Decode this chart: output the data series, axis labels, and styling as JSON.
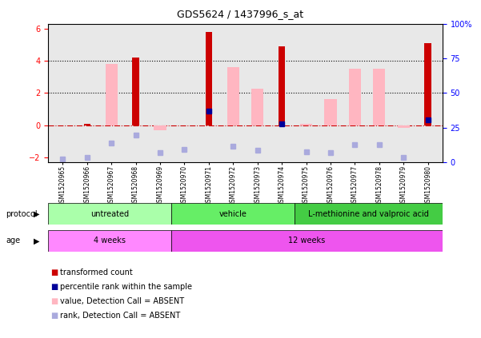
{
  "title": "GDS5624 / 1437996_s_at",
  "samples": [
    "GSM1520965",
    "GSM1520966",
    "GSM1520967",
    "GSM1520968",
    "GSM1520969",
    "GSM1520970",
    "GSM1520971",
    "GSM1520972",
    "GSM1520973",
    "GSM1520974",
    "GSM1520975",
    "GSM1520976",
    "GSM1520977",
    "GSM1520978",
    "GSM1520979",
    "GSM1520980"
  ],
  "transformed_count": [
    null,
    0.1,
    null,
    4.2,
    null,
    null,
    5.8,
    null,
    null,
    4.9,
    null,
    null,
    null,
    null,
    null,
    5.1
  ],
  "pct_rank": [
    null,
    null,
    null,
    null,
    null,
    null,
    0.9,
    null,
    null,
    0.1,
    null,
    null,
    null,
    null,
    null,
    0.35
  ],
  "pct_rank_absent": [
    -2.1,
    -2.0,
    -1.1,
    -0.6,
    -1.7,
    -1.5,
    null,
    -1.3,
    -1.55,
    null,
    -1.65,
    -1.7,
    -1.2,
    -1.2,
    -2.0,
    null
  ],
  "pink_absent_bar": [
    null,
    null,
    3.8,
    null,
    -0.3,
    null,
    null,
    3.6,
    2.25,
    null,
    0.1,
    1.6,
    3.5,
    3.5,
    -0.15,
    null
  ],
  "ylim": [
    -2.3,
    6.3
  ],
  "y2lim": [
    0,
    100
  ],
  "yticks": [
    -2,
    0,
    2,
    4,
    6
  ],
  "y2ticks": [
    0,
    25,
    50,
    75,
    100
  ],
  "protocol_groups": [
    {
      "label": "untreated",
      "start": 0,
      "end": 5,
      "color": "#AAFFAA"
    },
    {
      "label": "vehicle",
      "start": 5,
      "end": 10,
      "color": "#66EE66"
    },
    {
      "label": "L-methionine and valproic acid",
      "start": 10,
      "end": 16,
      "color": "#44CC44"
    }
  ],
  "age_groups": [
    {
      "label": "4 weeks",
      "start": 0,
      "end": 5,
      "color": "#FF88FF"
    },
    {
      "label": "12 weeks",
      "start": 5,
      "end": 16,
      "color": "#EE55EE"
    }
  ],
  "dark_red": "#CC0000",
  "light_pink": "#FFB6C1",
  "dark_blue": "#000099",
  "light_blue": "#AAAADD",
  "chart_bg": "#E8E8E8",
  "legend_items": [
    {
      "label": "transformed count",
      "color": "#CC0000"
    },
    {
      "label": "percentile rank within the sample",
      "color": "#000099"
    },
    {
      "label": "value, Detection Call = ABSENT",
      "color": "#FFB6C1"
    },
    {
      "label": "rank, Detection Call = ABSENT",
      "color": "#AAAADD"
    }
  ]
}
